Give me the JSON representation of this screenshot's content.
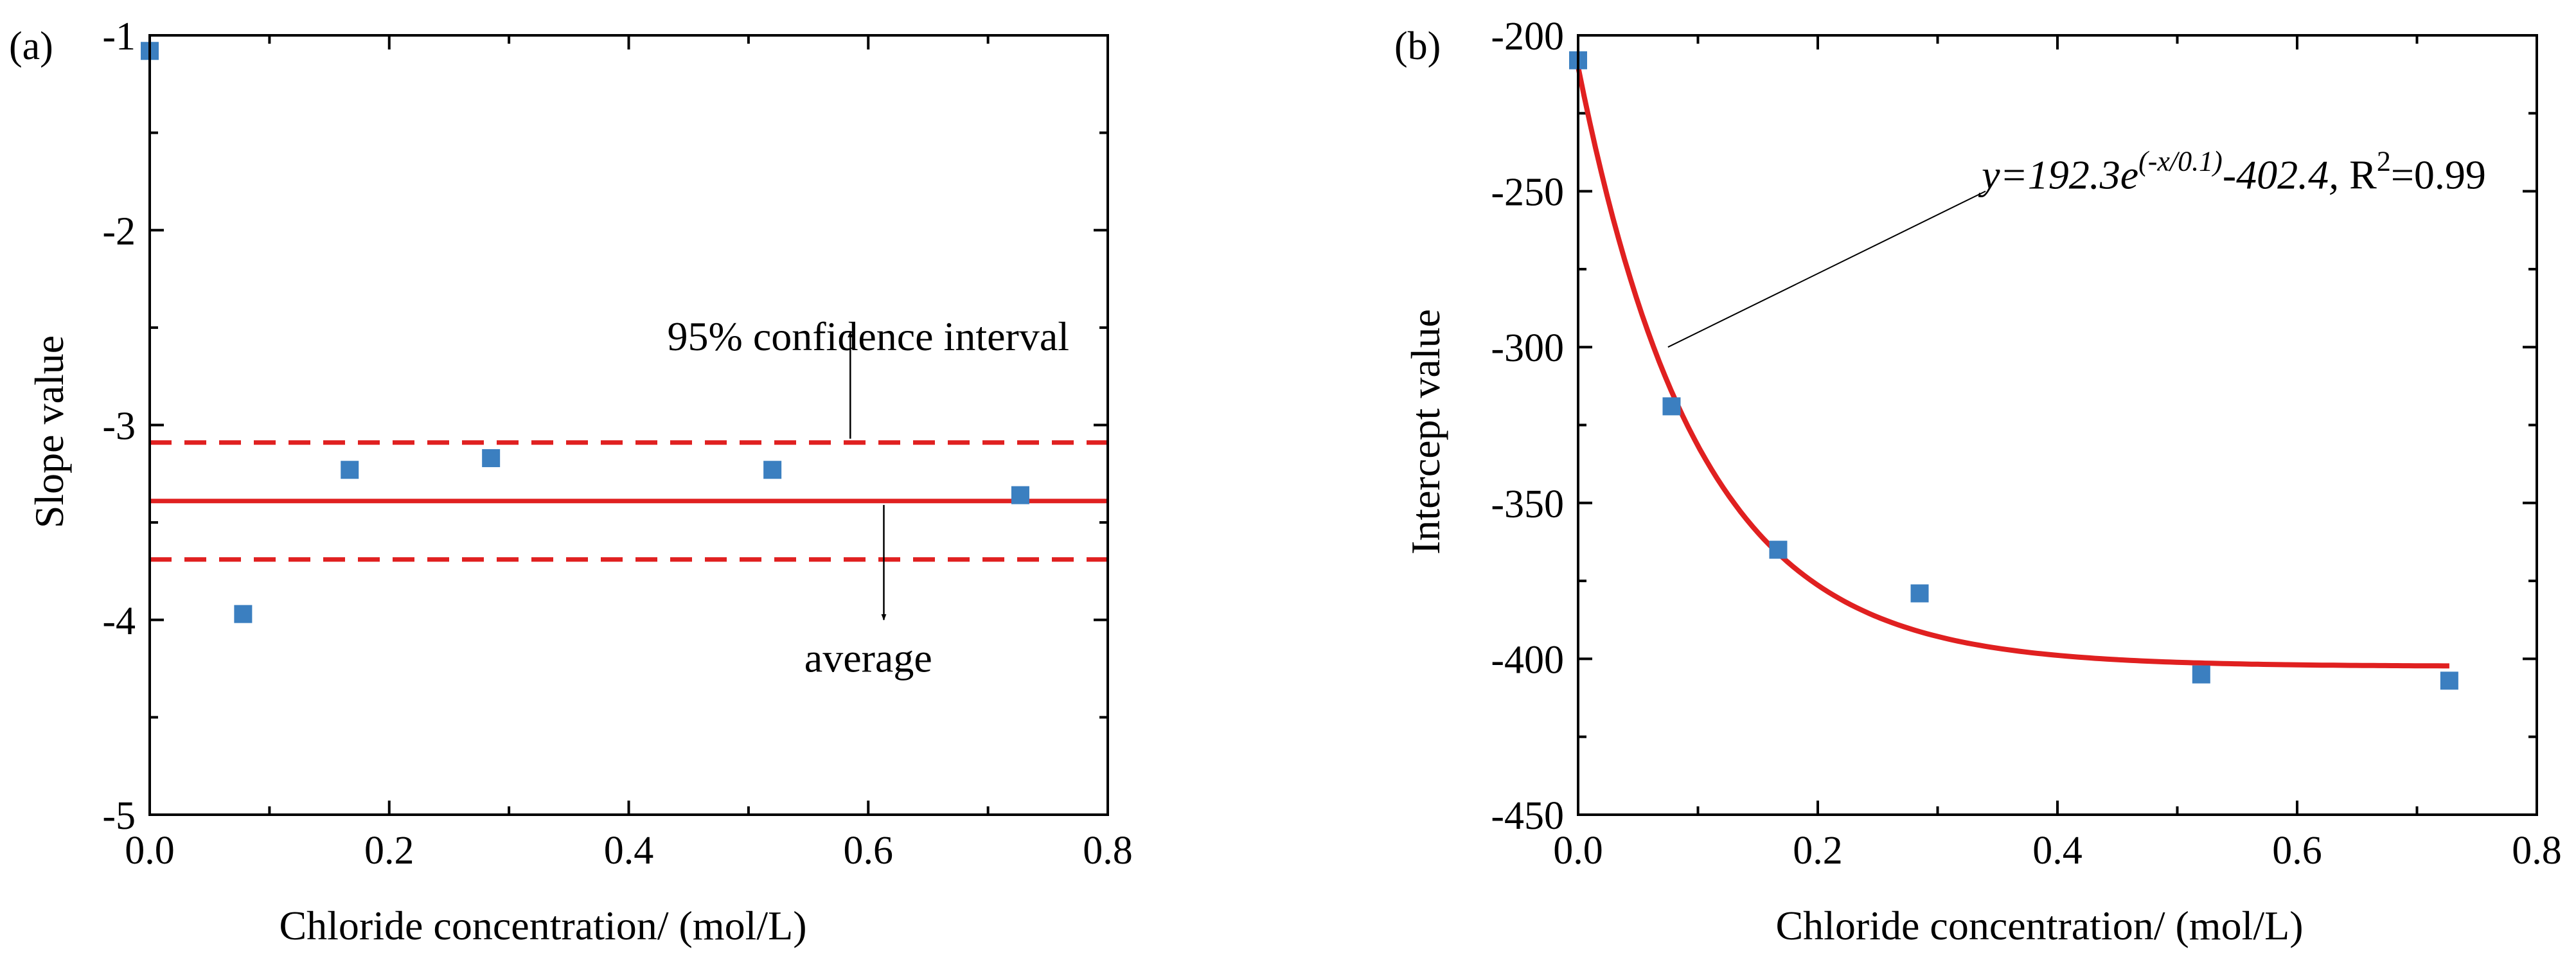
{
  "chart_data": [
    {
      "type": "scatter",
      "panel_label": "(a)",
      "xlabel": "Chloride concentration/ (mol/L)",
      "ylabel": "Slope value",
      "xlim": [
        0.0,
        0.8
      ],
      "ylim": [
        -5,
        -1
      ],
      "x_ticks": [
        0.0,
        0.2,
        0.4,
        0.6,
        0.8
      ],
      "x_tick_labels": [
        "0.0",
        "0.2",
        "0.4",
        "0.6",
        "0.8"
      ],
      "y_ticks": [
        -5,
        -4,
        -3,
        -2,
        -1
      ],
      "y_tick_labels": [
        "-5",
        "-4",
        "-3",
        "-2",
        "-1"
      ],
      "series": [
        {
          "name": "slope",
          "marker": "square",
          "color": "#3B7FC0",
          "x": [
            0.0,
            0.078,
            0.167,
            0.285,
            0.52,
            0.727
          ],
          "y": [
            -1.08,
            -3.97,
            -3.23,
            -3.17,
            -3.23,
            -3.36
          ]
        }
      ],
      "reference_lines": [
        {
          "name": "average",
          "value": -3.39,
          "style": "solid",
          "color": "#E02020"
        },
        {
          "name": "upper 95% bound",
          "value": -3.09,
          "style": "dashed",
          "color": "#E02020"
        },
        {
          "name": "lower 95% bound",
          "value": -3.69,
          "style": "dashed",
          "color": "#E02020"
        }
      ],
      "annotations": [
        {
          "text": "95% confidence interval",
          "x": 0.6,
          "y": -2.55,
          "arrow_from": [
            0.585,
            -3.07
          ],
          "arrow_to": [
            0.585,
            -2.52
          ]
        },
        {
          "text": "average",
          "x": 0.6,
          "y": -4.2,
          "arrow_from": [
            0.613,
            -3.41
          ],
          "arrow_to": [
            0.613,
            -4.0
          ]
        }
      ]
    },
    {
      "type": "scatter",
      "panel_label": "(b)",
      "xlabel": "Chloride concentration/ (mol/L)",
      "ylabel": "Intercept value",
      "xlim": [
        0.0,
        0.8
      ],
      "ylim": [
        -450,
        -200
      ],
      "x_ticks": [
        0.0,
        0.2,
        0.4,
        0.6,
        0.8
      ],
      "x_tick_labels": [
        "0.0",
        "0.2",
        "0.4",
        "0.6",
        "0.8"
      ],
      "y_ticks": [
        -450,
        -400,
        -350,
        -300,
        -250,
        -200
      ],
      "y_tick_labels": [
        "-450",
        "-400",
        "-350",
        "-300",
        "-250",
        "-200"
      ],
      "series": [
        {
          "name": "intercept",
          "marker": "square",
          "color": "#3B7FC0",
          "x": [
            0.0,
            0.078,
            0.167,
            0.285,
            0.52,
            0.727
          ],
          "y": [
            -208,
            -319,
            -365,
            -379,
            -405,
            -407
          ]
        }
      ],
      "fit": {
        "type": "line",
        "color": "#E02020",
        "model": "exponential",
        "A": 192.3,
        "t": 0.1,
        "y0": -402.4,
        "x_range": [
          0.0,
          0.727
        ]
      },
      "equation": {
        "y_part": "y=192.3e",
        "exponent": "(-x/0.1)",
        "tail": "-402.4,",
        "r_label": "R",
        "r_power": "2",
        "r_value": "=0.99"
      },
      "equation_pointer": {
        "from": [
          0.075,
          -300
        ],
        "to": [
          0.34,
          -250
        ]
      }
    }
  ]
}
